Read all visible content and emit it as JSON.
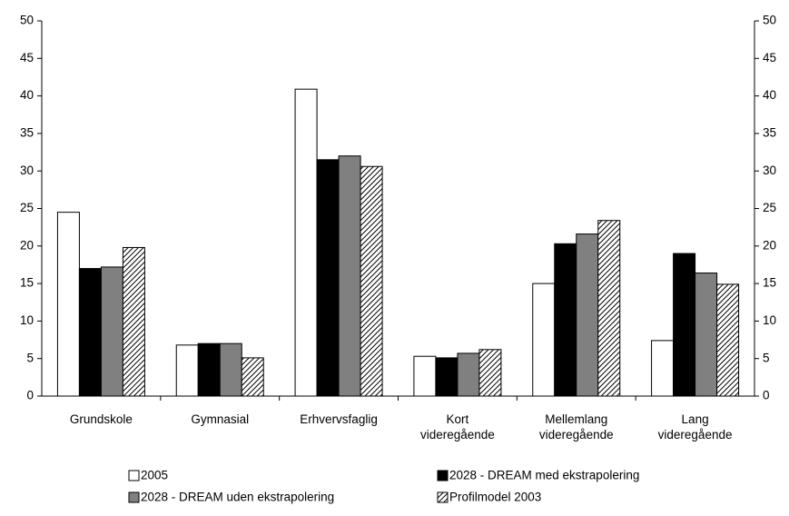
{
  "chart_data": {
    "type": "bar",
    "categories": [
      "Grundskole",
      "Gymnasial",
      "Erhvervsfaglig",
      "Kort videregående",
      "Mellemlang videregående",
      "Lang videregående"
    ],
    "series": [
      {
        "name": "2005",
        "color": "#ffffff",
        "values": [
          24.5,
          6.8,
          40.9,
          5.3,
          15.0,
          7.4
        ]
      },
      {
        "name": "2028 - DREAM med ekstrapolering",
        "color": "#000000",
        "values": [
          17.0,
          7.0,
          31.5,
          5.1,
          20.3,
          19.0
        ]
      },
      {
        "name": "2028 - DREAM uden ekstrapolering",
        "color": "#808080",
        "values": [
          17.2,
          7.0,
          32.0,
          5.7,
          21.6,
          16.4
        ]
      },
      {
        "name": "Profilmodel 2003",
        "color": "#000000",
        "pattern": "hatch",
        "values": [
          19.8,
          5.1,
          30.6,
          6.2,
          23.4,
          14.9
        ]
      }
    ],
    "ylim": [
      0,
      50
    ],
    "yticks": [
      0,
      5,
      10,
      15,
      20,
      25,
      30,
      35,
      40,
      45,
      50
    ],
    "y2lim": [
      0,
      50
    ],
    "y2ticks": [
      0,
      5,
      10,
      15,
      20,
      25,
      30,
      35,
      40,
      45,
      50
    ],
    "grid": false,
    "legend": "bottom"
  }
}
